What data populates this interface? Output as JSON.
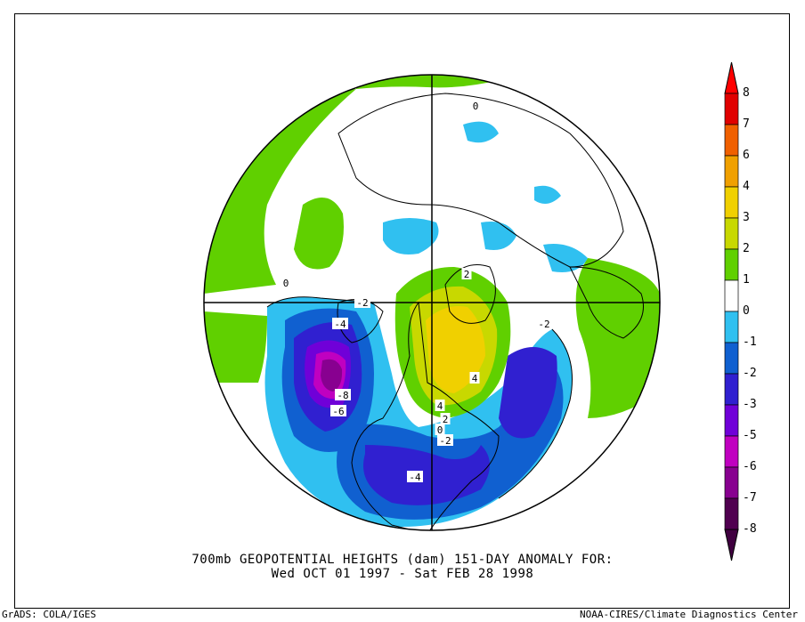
{
  "caption": {
    "line1": "700mb GEOPOTENTIAL HEIGHTS (dam)   151-DAY ANOMALY FOR:",
    "line2": "Wed OCT 01 1997 - Sat FEB 28 1998"
  },
  "credits": {
    "left": "GrADS: COLA/IGES",
    "right": "NOAA-CIRES/Climate Diagnostics Center"
  },
  "colorbar": {
    "labels": [
      "8",
      "7",
      "6",
      "4",
      "3",
      "2",
      "1",
      "0",
      "-1",
      "-2",
      "-3",
      "-5",
      "-6",
      "-7",
      "-8"
    ],
    "colors": [
      "#e00000",
      "#f06000",
      "#f0a000",
      "#f0d000",
      "#c8d800",
      "#60d000",
      "#ffffff",
      "#30c0f0",
      "#1060d0",
      "#3020d0",
      "#7000d8",
      "#c000c0",
      "#880090",
      "#500050"
    ],
    "top_color": "#ff0000",
    "bottom_color": "#400040"
  },
  "map": {
    "projection": "north-polar-stereographic",
    "land_color": "#000000",
    "contour_labels": [
      {
        "name": "contour-label-0-north",
        "text": "0"
      },
      {
        "name": "contour-label-0-west",
        "text": "0"
      },
      {
        "name": "contour-label-2-arctic",
        "text": "2"
      },
      {
        "name": "contour-label-neg2-east",
        "text": "-2"
      },
      {
        "name": "contour-label-neg4-pacific",
        "text": "-4"
      },
      {
        "name": "contour-label-neg2-alaska",
        "text": "-2"
      },
      {
        "name": "contour-label-neg8",
        "text": "-8"
      },
      {
        "name": "contour-label-neg6",
        "text": "-6"
      },
      {
        "name": "contour-label-4-hudson",
        "text": "4"
      },
      {
        "name": "contour-label-4-labrador",
        "text": "4"
      },
      {
        "name": "contour-label-2-lakes",
        "text": "2"
      },
      {
        "name": "contour-label-0-lakes",
        "text": "0"
      },
      {
        "name": "contour-label-neg2-lakes",
        "text": "-2"
      },
      {
        "name": "contour-label-neg4-usa",
        "text": "-4"
      }
    ]
  }
}
